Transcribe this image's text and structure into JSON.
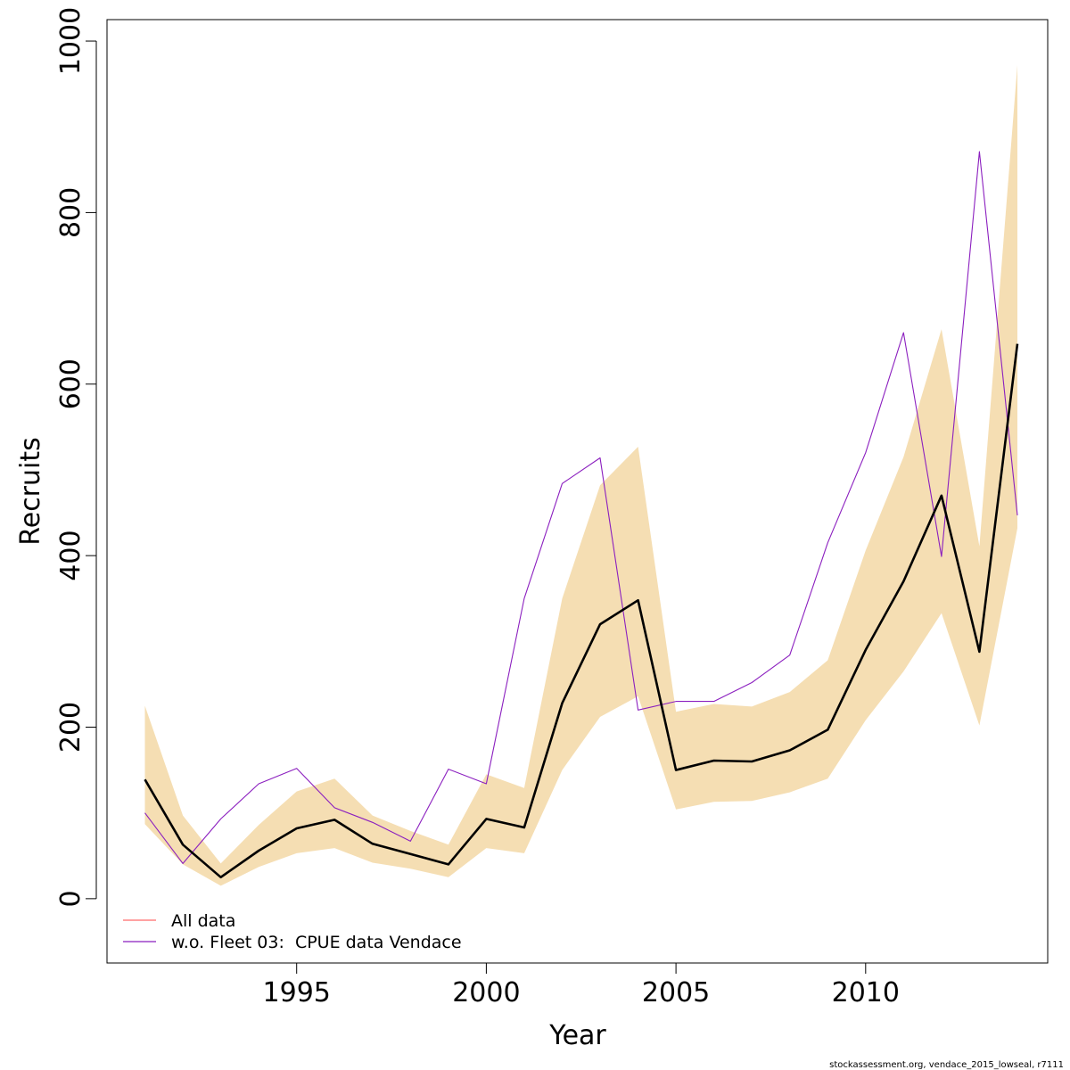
{
  "chart_data": {
    "type": "line",
    "xlabel": "Year",
    "ylabel": "Recruits",
    "xlim": [
      1990.0,
      2014.8
    ],
    "ylim": [
      -75,
      1025
    ],
    "x_ticks": [
      1995,
      2000,
      2005,
      2010
    ],
    "y_ticks": [
      0,
      200,
      400,
      600,
      800,
      1000
    ],
    "grid": false,
    "legend_position": "bottom-left",
    "x": [
      1991,
      1992,
      1993,
      1994,
      1995,
      1996,
      1997,
      1998,
      1999,
      2000,
      2001,
      2002,
      2003,
      2004,
      2005,
      2006,
      2007,
      2008,
      2009,
      2010,
      2011,
      2012,
      2013,
      2014
    ],
    "series": [
      {
        "name": "All data",
        "color": "#000000",
        "values": [
          139,
          63,
          25,
          56,
          82,
          92,
          64,
          52,
          40,
          93,
          83,
          228,
          320,
          348,
          150,
          161,
          160,
          173,
          197,
          290,
          370,
          470,
          288,
          647
        ]
      },
      {
        "name": "w.o. Fleet 03:  CPUE data Vendace",
        "color": "#8b1fbf",
        "values": [
          100,
          41,
          93,
          134,
          152,
          106,
          89,
          67,
          151,
          134,
          350,
          484,
          514,
          220,
          230,
          230,
          252,
          284,
          415,
          520,
          660,
          399,
          871,
          447
        ]
      }
    ],
    "band": {
      "color": "#f5deb3",
      "lower": [
        87,
        40,
        15,
        37,
        53,
        59,
        42,
        35,
        25,
        59,
        53,
        150,
        212,
        236,
        104,
        113,
        114,
        124,
        140,
        208,
        265,
        333,
        202,
        432
      ],
      "upper": [
        225,
        97,
        41,
        86,
        125,
        140,
        97,
        79,
        63,
        145,
        129,
        350,
        482,
        527,
        218,
        227,
        224,
        241,
        278,
        406,
        515,
        664,
        411,
        972
      ]
    },
    "legend_swatches": [
      "#ff6a6a",
      "#8b1fbf"
    ]
  },
  "footer": "stockassessment.org, vendace_2015_lowseal, r7111"
}
